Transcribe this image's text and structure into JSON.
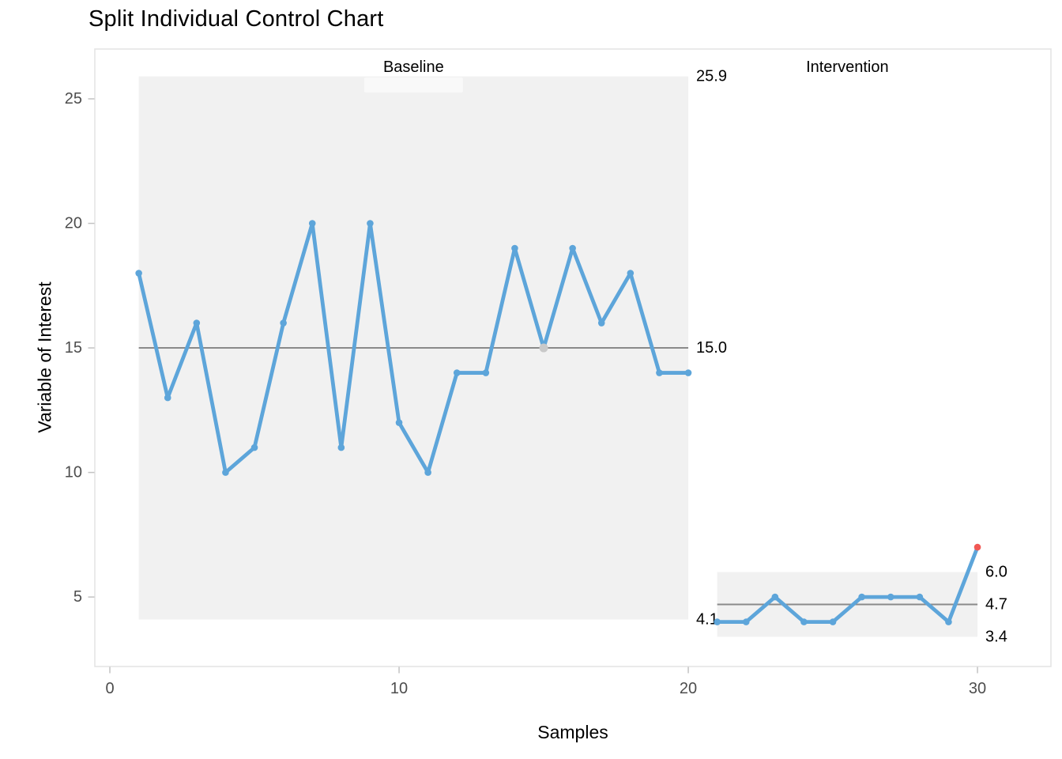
{
  "page_title": "Split Individual Control Chart",
  "chart_data": {
    "type": "line",
    "subtype": "individuals-control-chart-split",
    "title": "Split Individual Control Chart",
    "xlabel": "Samples",
    "ylabel": "Variable of Interest",
    "grid": "off",
    "legend": "none",
    "x_ticks": [
      0,
      10,
      20,
      30
    ],
    "y_ticks": [
      5,
      10,
      15,
      20,
      25
    ],
    "xlim": [
      -0.52,
      32.54
    ],
    "ylim": [
      2.21,
      27.0
    ],
    "series": [
      {
        "name": "Variable of Interest",
        "x": [
          1,
          2,
          3,
          4,
          5,
          6,
          7,
          8,
          9,
          10,
          11,
          12,
          13,
          14,
          15,
          16,
          17,
          18,
          19,
          20,
          21,
          22,
          23,
          24,
          25,
          26,
          27,
          28,
          29,
          30
        ],
        "values": [
          18,
          13,
          16,
          10,
          11,
          16,
          20,
          11,
          20,
          12,
          10,
          14,
          14,
          19,
          15,
          19,
          16,
          18,
          14,
          14,
          4,
          4,
          5,
          4,
          4,
          5,
          5,
          5,
          4,
          7
        ]
      }
    ],
    "special_points": [
      {
        "x": 15,
        "y": 15,
        "role": "excluded-point",
        "color": "#c9c9c9"
      },
      {
        "x": 30,
        "y": 7,
        "role": "signal-point",
        "color": "#f15854"
      }
    ],
    "parts": [
      {
        "label": "Baseline",
        "x_start": 1,
        "x_end": 20,
        "ucl": 25.9,
        "cl": 15.0,
        "lcl": 4.1,
        "ucl_label": "25.9",
        "cl_label": "15.0",
        "lcl_label": "4.1"
      },
      {
        "label": "Intervention",
        "x_start": 21,
        "x_end": 30,
        "ucl": 6.0,
        "cl": 4.7,
        "lcl": 3.4,
        "ucl_label": "6.0",
        "cl_label": "4.7",
        "lcl_label": "3.4"
      }
    ],
    "colors": {
      "line": "#5da5da",
      "signal": "#f15854",
      "excluded": "#c9c9c9",
      "center_line": "#8a8a8a",
      "band": "#f1f1f1",
      "panel_border": "#e3e3e3",
      "tick_mark": "#c2c2c2",
      "tick_label": "#4d4d4d",
      "label_text": "#000000"
    }
  }
}
